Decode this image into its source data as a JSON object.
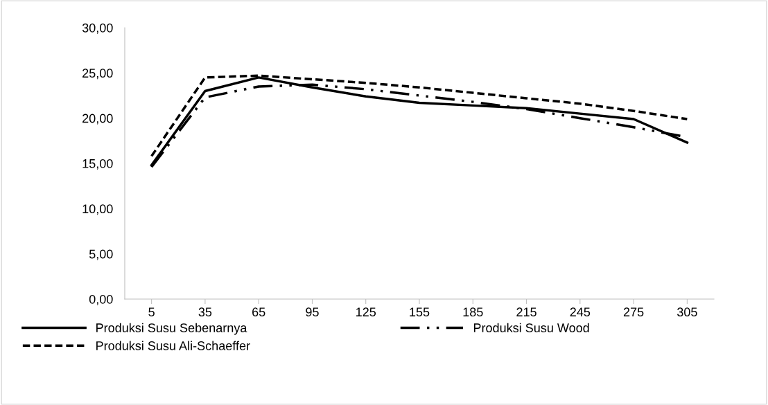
{
  "chart_data": {
    "type": "line",
    "categories": [
      "5",
      "35",
      "65",
      "95",
      "125",
      "155",
      "185",
      "215",
      "245",
      "275",
      "305"
    ],
    "series": [
      {
        "name": "Produksi Susu Sebenarnya",
        "color": "#000000",
        "line_style": "solid",
        "values": [
          14.8,
          23.0,
          24.5,
          23.4,
          22.4,
          21.7,
          21.4,
          21.1,
          20.5,
          19.9,
          17.3
        ]
      },
      {
        "name": "Produksi Susu Ali-Schaeffer",
        "color": "#000000",
        "line_style": "dashed",
        "values": [
          15.8,
          24.5,
          24.7,
          24.3,
          23.9,
          23.4,
          22.8,
          22.2,
          21.6,
          20.8,
          19.9
        ]
      },
      {
        "name": "Produksi Susu Wood",
        "color": "#000000",
        "line_style": "dashdotdot",
        "values": [
          14.6,
          22.3,
          23.5,
          23.7,
          23.2,
          22.5,
          21.8,
          21.0,
          20.0,
          19.0,
          17.9
        ]
      }
    ],
    "ylim": [
      0,
      30
    ],
    "yticks": [
      {
        "value": 0,
        "label": "0,00"
      },
      {
        "value": 5,
        "label": "5,00"
      },
      {
        "value": 10,
        "label": "10,00"
      },
      {
        "value": 15,
        "label": "15,00"
      },
      {
        "value": 20,
        "label": "20,00"
      },
      {
        "value": 25,
        "label": "25,00"
      },
      {
        "value": 30,
        "label": "30,00"
      }
    ],
    "grid": false,
    "legend": "bottom",
    "marker": "none"
  }
}
